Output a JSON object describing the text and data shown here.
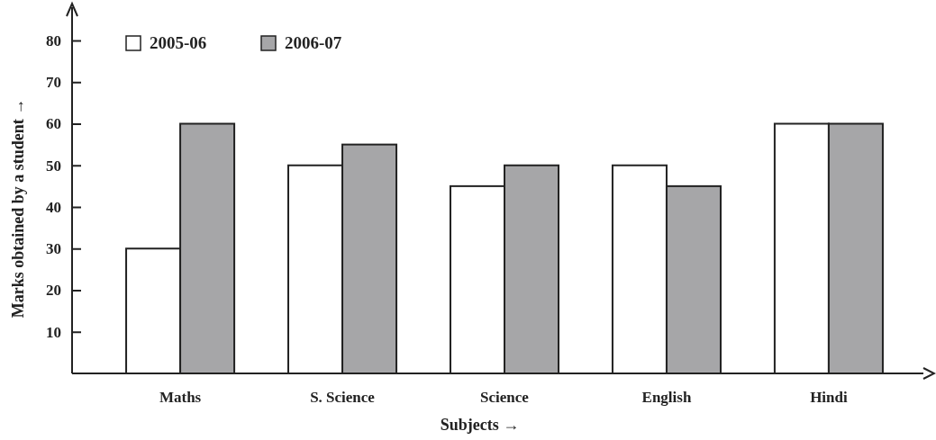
{
  "chart_data": {
    "type": "bar",
    "xlabel": "Subjects →",
    "ylabel": "Marks obtained by a student →",
    "categories": [
      "Maths",
      "S. Science",
      "Science",
      "English",
      "Hindi"
    ],
    "series": [
      {
        "name": "2005-06",
        "color": "#ffffff",
        "values": [
          30,
          50,
          45,
          50,
          60
        ]
      },
      {
        "name": "2006-07",
        "color": "#a6a6a8",
        "values": [
          60,
          55,
          50,
          45,
          60
        ]
      }
    ],
    "ylim": [
      0,
      88
    ],
    "yticks": [
      10,
      20,
      30,
      40,
      50,
      60,
      70,
      80
    ],
    "grid": false,
    "legend": "top left"
  }
}
